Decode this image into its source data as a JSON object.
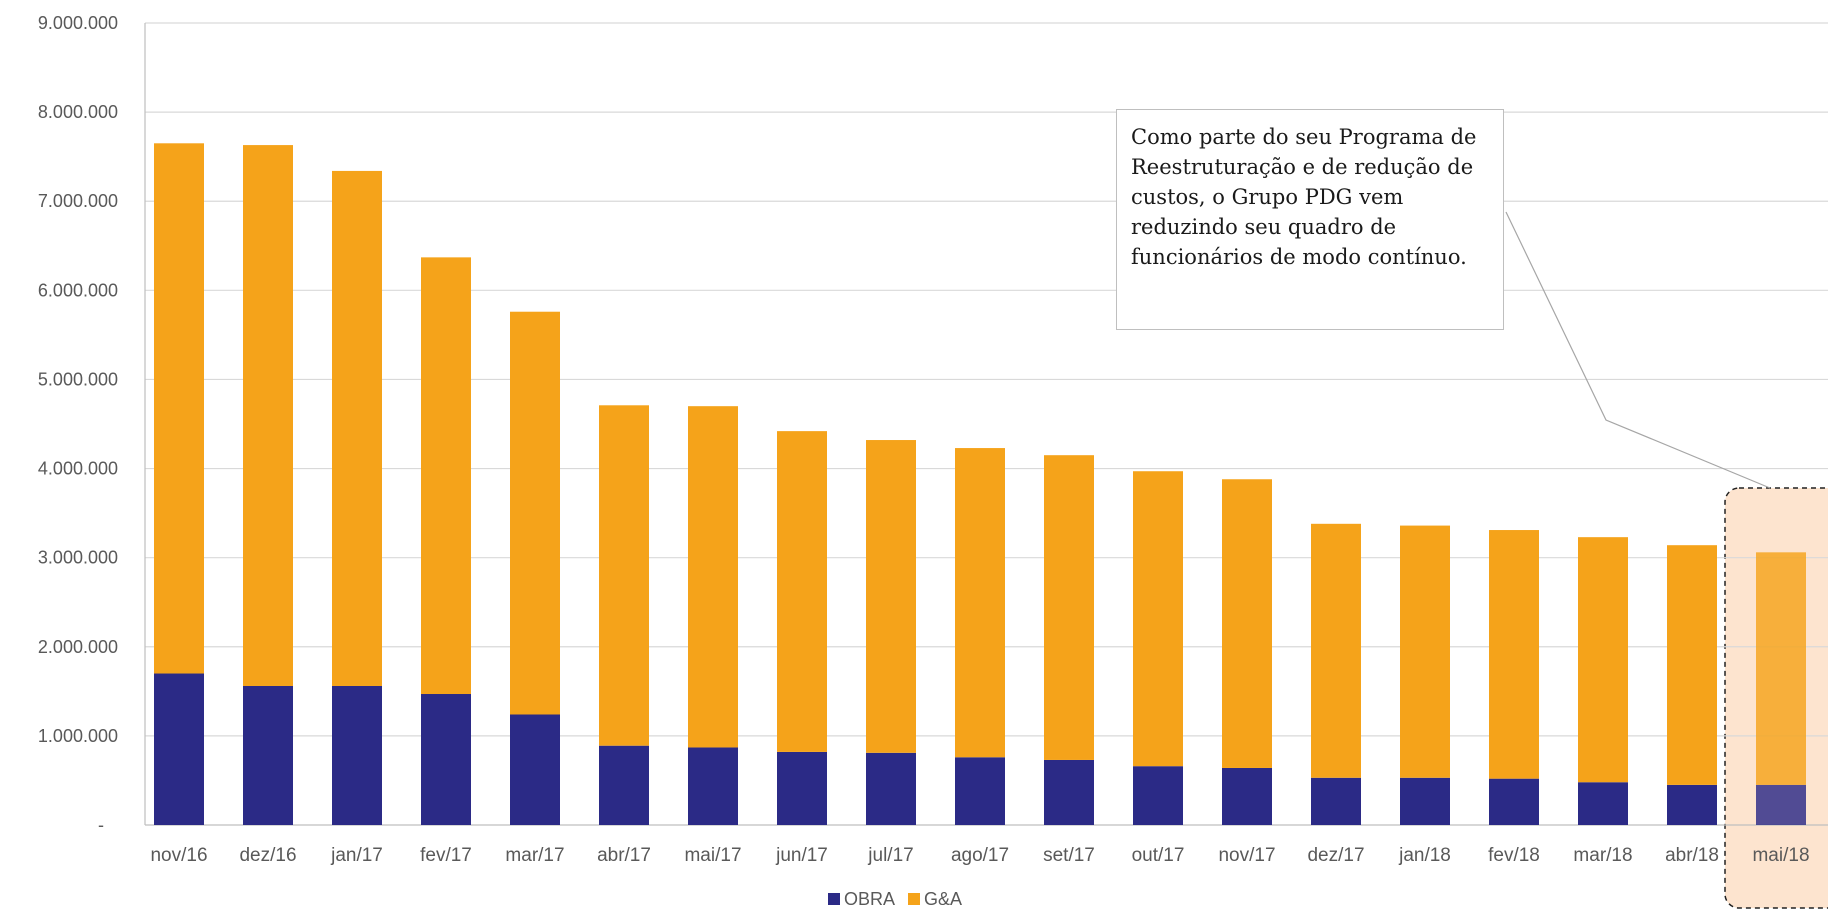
{
  "chart_data": {
    "type": "bar",
    "stacked": true,
    "categories": [
      "nov/16",
      "dez/16",
      "jan/17",
      "fev/17",
      "mar/17",
      "abr/17",
      "mai/17",
      "jun/17",
      "jul/17",
      "ago/17",
      "set/17",
      "out/17",
      "nov/17",
      "dez/17",
      "jan/18",
      "fev/18",
      "mar/18",
      "abr/18",
      "mai/18"
    ],
    "series": [
      {
        "name": "OBRA",
        "color": "#2b2a86",
        "values": [
          1700000,
          1560000,
          1560000,
          1470000,
          1240000,
          890000,
          870000,
          820000,
          810000,
          760000,
          730000,
          660000,
          640000,
          530000,
          530000,
          520000,
          480000,
          450000,
          450000
        ]
      },
      {
        "name": "G&A",
        "color": "#f5a31a",
        "values": [
          5950000,
          6070000,
          5780000,
          4900000,
          4520000,
          3820000,
          3830000,
          3600000,
          3510000,
          3470000,
          3420000,
          3310000,
          3240000,
          2850000,
          2830000,
          2790000,
          2750000,
          2690000,
          2610000
        ]
      }
    ],
    "ylim": [
      0,
      9000000
    ],
    "yticks": [
      0,
      1000000,
      2000000,
      3000000,
      4000000,
      5000000,
      6000000,
      7000000,
      8000000,
      9000000
    ],
    "ytick_labels": [
      "-",
      "1.000.000",
      "2.000.000",
      "3.000.000",
      "4.000.000",
      "5.000.000",
      "6.000.000",
      "7.000.000",
      "8.000.000",
      "9.000.000"
    ],
    "grid": true,
    "legend": "bottom",
    "highlight_category": "mai/18",
    "highlight_color": "#fde4cf",
    "annotation": "Como parte do seu Programa de Reestruturação e de redução de custos, o Grupo PDG vem reduzindo seu quadro de funcionários de modo contínuo."
  }
}
